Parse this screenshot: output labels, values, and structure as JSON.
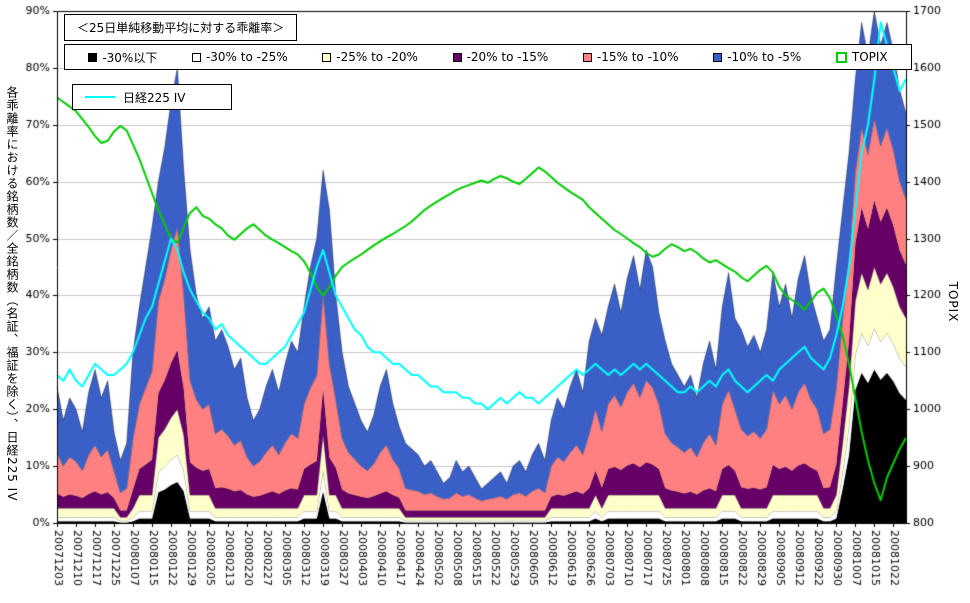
{
  "chart_data": {
    "type": "area",
    "stacked": true,
    "title": "＜25日単純移動平均に対する乖離率＞",
    "grid": "horizontal",
    "legend_position": "top",
    "points_per_tick": 3,
    "left_axis": {
      "label": "各乖離率における銘柄数／全銘柄数（名証、福証を除く）、日経225 IV",
      "min": 0,
      "max": 90,
      "tick_step": 10,
      "tick_labels": [
        "0%",
        "10%",
        "20%",
        "30%",
        "40%",
        "50%",
        "60%",
        "70%",
        "80%",
        "90%"
      ]
    },
    "right_axis": {
      "label": "TOPIX",
      "min": 800,
      "max": 1700,
      "tick_step": 100,
      "tick_labels": [
        "800",
        "900",
        "1000",
        "1100",
        "1200",
        "1300",
        "1400",
        "1500",
        "1600",
        "1700"
      ]
    },
    "x_labels": [
      "20071203",
      "20071210",
      "20071217",
      "20071225",
      "20080107",
      "20080115",
      "20080122",
      "20080129",
      "20080205",
      "20080213",
      "20080220",
      "20080227",
      "20080305",
      "20080312",
      "20080319",
      "20080327",
      "20080403",
      "20080410",
      "20080417",
      "20080424",
      "20080502",
      "20080508",
      "20080515",
      "20080522",
      "20080529",
      "20080605",
      "20080612",
      "20080619",
      "20080626",
      "20080703",
      "20080710",
      "20080717",
      "20080725",
      "20080801",
      "20080808",
      "20080815",
      "20080822",
      "20080829",
      "20080905",
      "20080912",
      "20080922",
      "20080930",
      "20081007",
      "20081015",
      "20081022"
    ],
    "series": [
      {
        "name": "-30%以下",
        "color": "#000000",
        "values": [
          0.3,
          0.3,
          0.3,
          0.3,
          0.3,
          0.3,
          0.3,
          0.3,
          0.3,
          0.3,
          0.1,
          0.1,
          0.3,
          0.8,
          0.8,
          0.8,
          5.4,
          5.9,
          6.7,
          7.2,
          5.6,
          0.8,
          0.8,
          0.8,
          0.8,
          0.3,
          0.3,
          0.3,
          0.3,
          0.3,
          0.3,
          0.3,
          0.3,
          0.3,
          0.3,
          0.3,
          0.3,
          0.3,
          0.3,
          0.8,
          0.8,
          0.8,
          5.6,
          0.8,
          0.8,
          0.3,
          0.3,
          0.3,
          0.3,
          0.3,
          0.3,
          0.3,
          0.3,
          0.3,
          0.3,
          0.1,
          0.1,
          0.1,
          0.1,
          0.1,
          0.1,
          0.1,
          0.1,
          0.1,
          0.1,
          0.1,
          0.1,
          0.1,
          0.1,
          0.1,
          0.1,
          0.1,
          0.1,
          0.1,
          0.1,
          0.1,
          0.1,
          0.1,
          0.3,
          0.3,
          0.3,
          0.3,
          0.3,
          0.3,
          0.3,
          0.8,
          0.3,
          0.8,
          0.8,
          0.8,
          0.8,
          0.8,
          0.8,
          0.8,
          0.8,
          0.8,
          0.3,
          0.3,
          0.3,
          0.3,
          0.3,
          0.3,
          0.3,
          0.3,
          0.3,
          0.8,
          0.8,
          0.8,
          0.3,
          0.3,
          0.3,
          0.3,
          0.3,
          0.8,
          0.8,
          0.8,
          0.8,
          0.8,
          0.8,
          0.8,
          0.8,
          0.3,
          0.3,
          0.8,
          6,
          12,
          23.4,
          26.4,
          24.6,
          27,
          25.2,
          26.4,
          24.9,
          22.8,
          21.6
        ]
      },
      {
        "name": "-30% to -25%",
        "color": "#ffffff",
        "values": [
          0.7,
          0.7,
          0.7,
          0.7,
          0.7,
          0.7,
          0.7,
          0.7,
          0.7,
          0.7,
          0.3,
          0.3,
          0.7,
          1.3,
          1.3,
          1.3,
          3.6,
          4,
          4.4,
          4.8,
          3.7,
          1.3,
          1.3,
          1.3,
          1.3,
          0.7,
          0.7,
          0.7,
          0.7,
          0.7,
          0.7,
          0.7,
          0.7,
          0.7,
          0.7,
          0.7,
          0.7,
          0.7,
          0.7,
          1.3,
          1.3,
          1.3,
          3.7,
          1.3,
          1.3,
          0.7,
          0.7,
          0.7,
          0.7,
          0.7,
          0.7,
          0.7,
          0.7,
          0.7,
          0.7,
          0.3,
          0.3,
          0.3,
          0.3,
          0.3,
          0.3,
          0.3,
          0.3,
          0.3,
          0.3,
          0.3,
          0.3,
          0.3,
          0.3,
          0.3,
          0.3,
          0.3,
          0.3,
          0.3,
          0.3,
          0.3,
          0.3,
          0.3,
          0.7,
          0.7,
          0.7,
          0.7,
          0.7,
          0.7,
          0.7,
          1.3,
          0.7,
          1.3,
          1.3,
          1.3,
          1.3,
          1.3,
          1.3,
          1.3,
          1.3,
          1.3,
          0.7,
          0.7,
          0.7,
          0.7,
          0.7,
          0.7,
          0.7,
          0.7,
          0.7,
          1.3,
          1.3,
          1.3,
          0.7,
          0.7,
          0.7,
          0.7,
          0.7,
          1.3,
          1.3,
          1.3,
          1.3,
          1.3,
          1.3,
          1.3,
          1.3,
          0.7,
          0.7,
          1.3,
          3,
          5,
          6.2,
          7,
          6.6,
          7.2,
          6.7,
          7,
          6.6,
          6.1,
          5.8
        ]
      },
      {
        "name": "-25% to -20%",
        "color": "#ffffcc",
        "values": [
          1.6,
          1.6,
          1.6,
          1.6,
          1.6,
          1.6,
          1.6,
          1.6,
          1.6,
          1.6,
          0.6,
          0.6,
          1.6,
          2.8,
          2.8,
          2.8,
          6,
          6.6,
          7.4,
          8,
          6.2,
          2.8,
          2.8,
          2.8,
          2.8,
          1.6,
          1.6,
          1.6,
          1.6,
          1.6,
          1.6,
          1.6,
          1.6,
          1.6,
          1.6,
          1.6,
          1.6,
          1.6,
          1.6,
          2.8,
          2.8,
          2.8,
          6.2,
          2.8,
          2.8,
          1.6,
          1.6,
          1.6,
          1.6,
          1.6,
          1.6,
          1.6,
          1.6,
          1.6,
          1.6,
          0.6,
          0.6,
          0.6,
          0.6,
          0.6,
          0.6,
          0.6,
          0.6,
          0.6,
          0.6,
          0.6,
          0.6,
          0.6,
          0.6,
          0.6,
          0.6,
          0.6,
          0.6,
          0.6,
          0.6,
          0.6,
          0.6,
          0.6,
          1.6,
          1.6,
          1.6,
          1.6,
          1.6,
          1.6,
          1.6,
          2.8,
          1.6,
          2.8,
          2.8,
          2.8,
          2.8,
          2.8,
          2.8,
          2.8,
          2.8,
          2.8,
          1.6,
          1.6,
          1.6,
          1.6,
          1.6,
          1.6,
          1.6,
          1.6,
          1.6,
          2.8,
          2.8,
          2.8,
          1.6,
          1.6,
          1.6,
          1.6,
          1.6,
          2.8,
          2.8,
          2.8,
          2.8,
          2.8,
          2.8,
          2.8,
          2.8,
          1.6,
          1.6,
          2.8,
          5,
          7,
          9.4,
          10.6,
          9.8,
          10.8,
          10.1,
          10.6,
          10,
          9.1,
          8.6
        ]
      },
      {
        "name": "-20% to -15%",
        "color": "#660066",
        "values": [
          2.6,
          2,
          2.4,
          2.2,
          1.8,
          2.5,
          3,
          2.4,
          2.8,
          1.8,
          1.2,
          1.2,
          3.3,
          4.6,
          5.4,
          6.2,
          7.8,
          8.6,
          9.6,
          10.4,
          8.1,
          5.8,
          4.8,
          4.3,
          4.6,
          3.5,
          3.7,
          3.4,
          3,
          3.2,
          2.4,
          2,
          2.2,
          2.6,
          3,
          2.5,
          3.1,
          3.5,
          3.3,
          4.6,
          5.4,
          6,
          8.1,
          6.6,
          4.8,
          3.3,
          2.6,
          2.3,
          2,
          1.8,
          2.1,
          2.6,
          3,
          2.3,
          1.9,
          1.2,
          1.2,
          1.2,
          1.2,
          1.2,
          1.2,
          1.2,
          1.2,
          1.2,
          1.2,
          1.2,
          1.2,
          1.2,
          1.2,
          1.2,
          1.2,
          1.2,
          1.2,
          1.2,
          1.2,
          1.2,
          1.2,
          1.2,
          2,
          2.4,
          2.2,
          2.6,
          3,
          2.5,
          3.5,
          4.3,
          3.6,
          4.6,
          5,
          4.4,
          5.2,
          5.6,
          4.9,
          5.8,
          5.4,
          4.6,
          3.5,
          3.1,
          2.9,
          2.6,
          2.9,
          2.4,
          3.1,
          3.5,
          3,
          4.6,
          5.3,
          4.3,
          3.7,
          3.4,
          3.6,
          3.3,
          3.7,
          5.3,
          4.6,
          5,
          4.3,
          5.2,
          5.6,
          4.8,
          4.3,
          3.5,
          3.7,
          5.4,
          7,
          8,
          10.1,
          11.4,
          10.7,
          11.7,
          10.9,
          11.4,
          10.8,
          9.9,
          9.4
        ]
      },
      {
        "name": "-15% to -10%",
        "color": "#ff8080",
        "values": [
          7.2,
          5.4,
          6.6,
          6,
          4.8,
          6.9,
          8.1,
          6.6,
          7.5,
          4.8,
          3.1,
          3.9,
          9,
          11.4,
          13.5,
          15.6,
          16.2,
          17.8,
          20,
          21.6,
          16.7,
          14.4,
          12,
          10.8,
          11.4,
          9.6,
          10.2,
          9.3,
          8.1,
          8.7,
          6.6,
          5.4,
          6,
          7.2,
          8.1,
          6.9,
          8.4,
          9.6,
          9,
          11.4,
          13.5,
          15,
          16.7,
          16.5,
          12,
          9,
          7.2,
          6.3,
          5.4,
          4.8,
          5.7,
          7.2,
          8.1,
          6.3,
          5.1,
          3.9,
          3.6,
          3.4,
          2.8,
          3.1,
          2.5,
          2,
          2.2,
          3.1,
          2.5,
          2.8,
          2.2,
          1.7,
          2,
          2.2,
          2.5,
          2,
          2.8,
          3.1,
          2.5,
          3.4,
          3.9,
          3.1,
          5.4,
          6.6,
          6,
          7.2,
          8.1,
          6.9,
          9.6,
          10.8,
          9.9,
          11.4,
          12.6,
          11.1,
          12.9,
          14.1,
          12.3,
          14.4,
          13.5,
          11.4,
          9.6,
          8.4,
          7.8,
          7.2,
          7.8,
          6.6,
          8.4,
          9.6,
          8.1,
          11.4,
          13.2,
          10.8,
          10.2,
          9.3,
          9.9,
          9,
          10.2,
          13.2,
          11.4,
          12.6,
          10.8,
          12.9,
          14.1,
          12,
          10.8,
          9.6,
          10.2,
          13.5,
          15,
          14,
          12.5,
          14.1,
          13.1,
          14.4,
          13.4,
          14.1,
          13.3,
          12.2,
          11.5
        ]
      },
      {
        "name": "-10% to -5%",
        "color": "#3a60c8",
        "values": [
          11.6,
          8,
          10.4,
          9.2,
          6.8,
          11,
          13.3,
          10.4,
          12.1,
          6.8,
          5.7,
          7.9,
          15.1,
          17.1,
          21.2,
          25.3,
          21,
          23.1,
          25.9,
          28,
          21.7,
          22.9,
          18.3,
          16,
          17.1,
          16.3,
          17.5,
          15.7,
          13.3,
          14.5,
          10.4,
          8,
          9.2,
          11.6,
          13.3,
          11,
          13.9,
          16.3,
          15.1,
          17.1,
          21.2,
          24.1,
          21.7,
          27,
          18.3,
          15.1,
          11.6,
          9.8,
          8,
          6.8,
          8.6,
          11.6,
          13.3,
          9.8,
          7.4,
          7.9,
          7.2,
          6.4,
          5,
          5.7,
          4.3,
          2.8,
          3.6,
          5.7,
          4.3,
          5,
          3.6,
          2.1,
          2.8,
          3.6,
          4.3,
          2.8,
          5,
          5.7,
          4.3,
          6.4,
          7.9,
          5.7,
          8,
          10.4,
          9.2,
          11.6,
          13.3,
          11,
          16.3,
          16,
          16.9,
          17.1,
          19.5,
          16.6,
          20,
          22.4,
          18.9,
          22.9,
          21.2,
          16,
          16.3,
          13.9,
          12.7,
          11.6,
          12.7,
          10.4,
          13.9,
          16.3,
          13.3,
          17.1,
          20.6,
          16,
          17.5,
          15.7,
          16.9,
          15.1,
          17.5,
          20.6,
          17.1,
          19.5,
          16,
          20,
          22.4,
          18.3,
          16,
          16.3,
          17.5,
          21.2,
          19,
          19,
          16.4,
          18.5,
          17.2,
          18.9,
          17.7,
          18.5,
          17.4,
          16,
          15.1
        ]
      }
    ],
    "lines": [
      {
        "name": "TOPIX",
        "color": "#00cc00",
        "axis": "right",
        "values": [
          1548,
          1540,
          1532,
          1524,
          1510,
          1496,
          1480,
          1468,
          1472,
          1488,
          1498,
          1490,
          1465,
          1440,
          1410,
          1380,
          1350,
          1325,
          1300,
          1293,
          1320,
          1345,
          1355,
          1340,
          1335,
          1325,
          1318,
          1305,
          1298,
          1308,
          1318,
          1325,
          1315,
          1305,
          1298,
          1292,
          1285,
          1278,
          1272,
          1260,
          1240,
          1215,
          1200,
          1215,
          1235,
          1250,
          1258,
          1265,
          1272,
          1280,
          1288,
          1295,
          1302,
          1308,
          1315,
          1322,
          1330,
          1340,
          1350,
          1358,
          1365,
          1372,
          1378,
          1385,
          1390,
          1394,
          1398,
          1402,
          1398,
          1405,
          1410,
          1406,
          1400,
          1396,
          1405,
          1415,
          1425,
          1418,
          1408,
          1398,
          1390,
          1382,
          1375,
          1368,
          1355,
          1345,
          1335,
          1325,
          1315,
          1308,
          1300,
          1292,
          1285,
          1275,
          1268,
          1272,
          1282,
          1290,
          1285,
          1278,
          1282,
          1275,
          1265,
          1258,
          1262,
          1255,
          1248,
          1242,
          1232,
          1225,
          1235,
          1245,
          1252,
          1240,
          1215,
          1200,
          1192,
          1185,
          1175,
          1190,
          1205,
          1212,
          1195,
          1165,
          1130,
          1080,
          1020,
          960,
          910,
          870,
          840,
          880,
          905,
          930,
          950
        ]
      },
      {
        "name": "日経225 IV",
        "color": "#00ffff",
        "axis": "left",
        "values": [
          26,
          25,
          27,
          25,
          24,
          26,
          28,
          27,
          26,
          26,
          27,
          28,
          30,
          33,
          36,
          38,
          42,
          46,
          50,
          48,
          44,
          41,
          39,
          37,
          36,
          34,
          35,
          33,
          32,
          31,
          30,
          29,
          28,
          28,
          29,
          30,
          31,
          33,
          35,
          37,
          41,
          45,
          48,
          44,
          40,
          38,
          36,
          34,
          33,
          31,
          30,
          30,
          29,
          28,
          28,
          27,
          26,
          26,
          25,
          24,
          24,
          23,
          23,
          23,
          22,
          22,
          21,
          21,
          20,
          21,
          22,
          21,
          22,
          23,
          22,
          22,
          21,
          22,
          23,
          24,
          25,
          26,
          27,
          26,
          27,
          28,
          27,
          26,
          27,
          26,
          27,
          28,
          27,
          28,
          27,
          26,
          25,
          24,
          23,
          23,
          24,
          23,
          24,
          25,
          24,
          26,
          27,
          25,
          24,
          23,
          24,
          25,
          26,
          25,
          27,
          28,
          29,
          30,
          31,
          29,
          28,
          27,
          29,
          33,
          38,
          45,
          55,
          65,
          70,
          78,
          88,
          84,
          80,
          76,
          78
        ]
      }
    ]
  },
  "legend": {
    "items": [
      {
        "label": "-30%以下",
        "color": "#000000",
        "swatch": "box"
      },
      {
        "label": "-30% to -25%",
        "color": "#ffffff",
        "swatch": "box"
      },
      {
        "label": "-25% to -20%",
        "color": "#ffffcc",
        "swatch": "box"
      },
      {
        "label": "-20% to -15%",
        "color": "#660066",
        "swatch": "box"
      },
      {
        "label": "-15% to -10%",
        "color": "#ff8080",
        "swatch": "box"
      },
      {
        "label": "-10% to -5%",
        "color": "#3a60c8",
        "swatch": "box"
      },
      {
        "label": "TOPIX",
        "color": "#00cc00",
        "swatch": "marker"
      }
    ]
  },
  "iv_legend": {
    "label": "日経225 IV",
    "color": "#00ffff"
  }
}
